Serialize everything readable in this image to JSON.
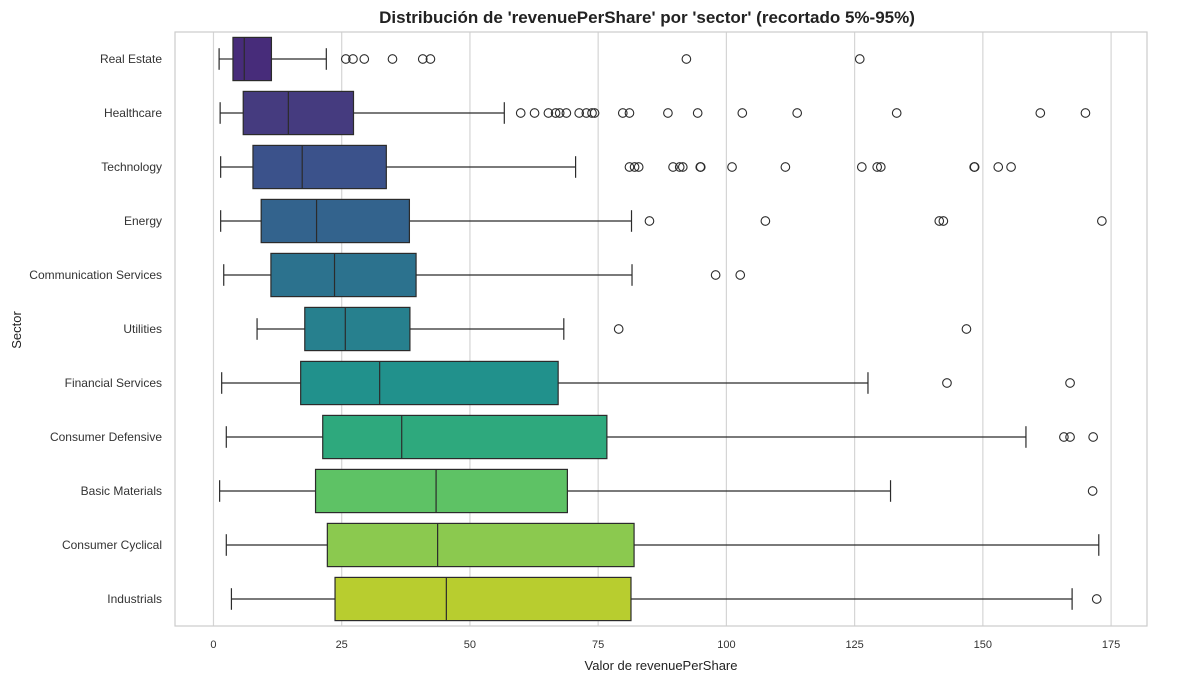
{
  "chart_data": {
    "type": "boxplot",
    "orientation": "horizontal",
    "title": "Distribución de 'revenuePerShare' por 'sector' (recortado 5%-95%)",
    "xlabel": "Valor de revenuePerShare",
    "ylabel": "Sector",
    "xlim": [
      -7.5,
      182
    ],
    "xticks": [
      0,
      25,
      50,
      75,
      100,
      125,
      150,
      175
    ],
    "grid": "vertical",
    "palette": "viridis",
    "categories": [
      "Real Estate",
      "Healthcare",
      "Technology",
      "Energy",
      "Communication Services",
      "Utilities",
      "Financial Services",
      "Consumer Defensive",
      "Basic Materials",
      "Consumer Cyclical",
      "Industrials"
    ],
    "boxes": [
      {
        "category": "Real Estate",
        "color": "#472c7a",
        "whislo": 1.1,
        "q1": 3.8,
        "med": 6.0,
        "q3": 11.3,
        "whishi": 22.0,
        "fliers": [
          25.8,
          27.2,
          29.4,
          34.9,
          40.8,
          42.3,
          92.2,
          126.0
        ]
      },
      {
        "category": "Healthcare",
        "color": "#453b7f",
        "whislo": 1.3,
        "q1": 5.8,
        "med": 14.6,
        "q3": 27.3,
        "whishi": 56.7,
        "fliers": [
          59.9,
          62.6,
          65.3,
          66.7,
          67.5,
          68.8,
          71.3,
          72.7,
          73.8,
          74.3,
          79.8,
          81.1,
          88.6,
          94.4,
          103.1,
          113.8,
          133.2,
          161.2,
          170.0
        ]
      },
      {
        "category": "Technology",
        "color": "#3b528b",
        "whislo": 1.4,
        "q1": 7.7,
        "med": 17.3,
        "q3": 33.7,
        "whishi": 70.6,
        "fliers": [
          81.1,
          82.1,
          82.9,
          89.6,
          90.9,
          91.5,
          94.9,
          95.0,
          101.1,
          111.5,
          126.4,
          129.4,
          130.1,
          148.4,
          148.3,
          153.0,
          155.5
        ]
      },
      {
        "category": "Energy",
        "color": "#33638d",
        "whislo": 1.4,
        "q1": 9.3,
        "med": 20.1,
        "q3": 38.2,
        "whishi": 81.5,
        "fliers": [
          85.0,
          107.6,
          141.5,
          142.3,
          173.2
        ]
      },
      {
        "category": "Communication Services",
        "color": "#2c728e",
        "whislo": 2.0,
        "q1": 11.2,
        "med": 23.6,
        "q3": 39.5,
        "whishi": 81.6,
        "fliers": [
          97.9,
          102.7
        ]
      },
      {
        "category": "Utilities",
        "color": "#27808e",
        "whislo": 8.5,
        "q1": 17.8,
        "med": 25.7,
        "q3": 38.3,
        "whishi": 68.3,
        "fliers": [
          79.0,
          146.8
        ]
      },
      {
        "category": "Financial Services",
        "color": "#21918c",
        "whislo": 1.6,
        "q1": 17.0,
        "med": 32.4,
        "q3": 67.2,
        "whishi": 127.6,
        "fliers": [
          143.0,
          167.0
        ]
      },
      {
        "category": "Consumer Defensive",
        "color": "#2ea97d",
        "whislo": 2.5,
        "q1": 21.3,
        "med": 36.7,
        "q3": 76.7,
        "whishi": 158.4,
        "fliers": [
          165.8,
          167.0,
          171.5
        ]
      },
      {
        "category": "Basic Materials",
        "color": "#5ec265",
        "whislo": 1.2,
        "q1": 19.9,
        "med": 43.4,
        "q3": 69.0,
        "whishi": 132.0,
        "fliers": [
          171.4
        ]
      },
      {
        "category": "Consumer Cyclical",
        "color": "#8bc94f",
        "whislo": 2.5,
        "q1": 22.2,
        "med": 43.7,
        "q3": 82.0,
        "whishi": 172.6,
        "fliers": []
      },
      {
        "category": "Industrials",
        "color": "#b8cd2f",
        "whislo": 3.5,
        "q1": 23.7,
        "med": 45.4,
        "q3": 81.4,
        "whishi": 167.4,
        "fliers": [
          172.2
        ]
      }
    ]
  }
}
